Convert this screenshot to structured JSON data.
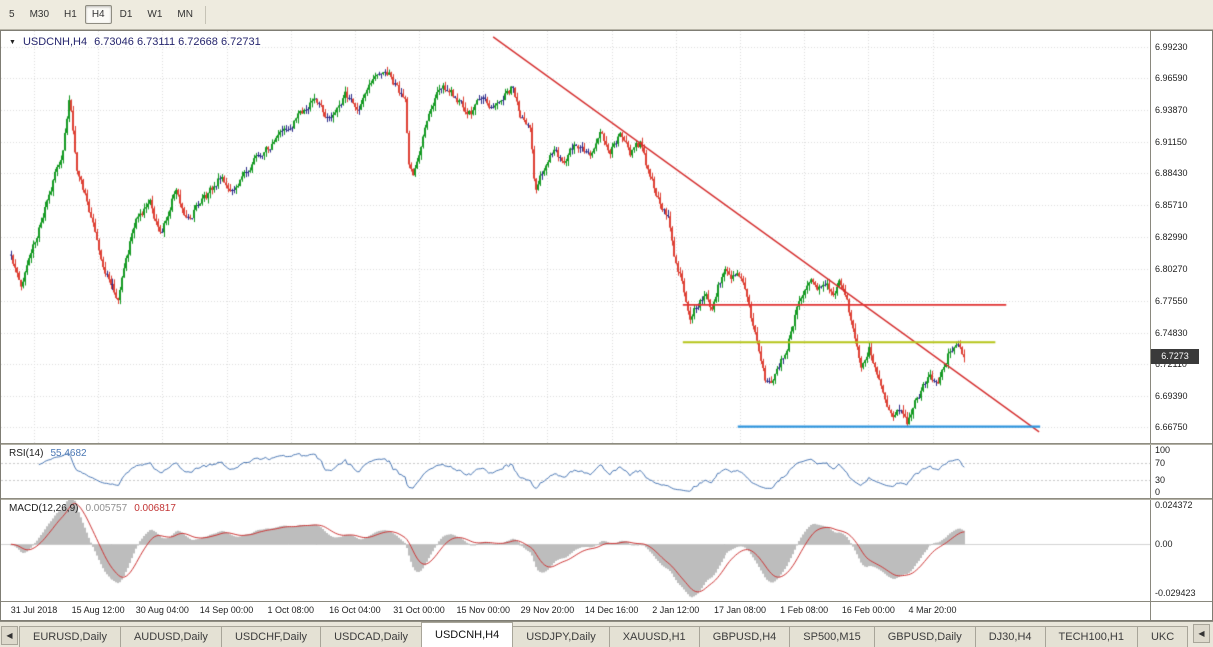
{
  "toolbar": {
    "timeframes": [
      {
        "label": "5",
        "active": false
      },
      {
        "label": "M30",
        "active": false
      },
      {
        "label": "H1",
        "active": false
      },
      {
        "label": "H4",
        "active": true
      },
      {
        "label": "D1",
        "active": false
      },
      {
        "label": "W1",
        "active": false
      },
      {
        "label": "MN",
        "active": false
      }
    ]
  },
  "chart": {
    "marker": "▼",
    "symbol_period": "USDCNH,H4",
    "ohlc": "6.73046 6.73111 6.72668 6.72731",
    "price_badge": "6.7273",
    "price_axis": [
      {
        "label": "6.99230",
        "value": 6.9923
      },
      {
        "label": "6.96590",
        "value": 6.9659
      },
      {
        "label": "6.93870",
        "value": 6.9387
      },
      {
        "label": "6.91150",
        "value": 6.9115
      },
      {
        "label": "6.88430",
        "value": 6.8843
      },
      {
        "label": "6.85710",
        "value": 6.8571
      },
      {
        "label": "6.82990",
        "value": 6.8299
      },
      {
        "label": "6.80270",
        "value": 6.8027
      },
      {
        "label": "6.77550",
        "value": 6.7755
      },
      {
        "label": "6.74830",
        "value": 6.7483
      },
      {
        "label": "6.72110",
        "value": 6.7211
      },
      {
        "label": "6.69390",
        "value": 6.6939
      },
      {
        "label": "6.66750",
        "value": 6.6675
      }
    ],
    "date_axis": [
      "31 Jul 2018",
      "15 Aug 12:00",
      "30 Aug 04:00",
      "14 Sep 00:00",
      "1 Oct 08:00",
      "16 Oct 04:00",
      "31 Oct 00:00",
      "15 Nov 00:00",
      "29 Nov 20:00",
      "14 Dec 16:00",
      "2 Jan 12:00",
      "17 Jan 08:00",
      "1 Feb 08:00",
      "16 Feb 00:00",
      "4 Mar 20:00"
    ]
  },
  "rsi": {
    "name": "RSI(14)",
    "value": "55.4682",
    "axis": [
      {
        "label": "100",
        "value": 100
      },
      {
        "label": "70",
        "value": 70
      },
      {
        "label": "30",
        "value": 30
      },
      {
        "label": "0",
        "value": 0
      }
    ]
  },
  "macd": {
    "name": "MACD(12,26,9)",
    "value_main": "0.005757",
    "value_signal": "0.006817",
    "axis": [
      {
        "label": "0.024372",
        "value": 0.024372
      },
      {
        "label": "0.00",
        "value": 0
      },
      {
        "label": "-0.029423",
        "value": -0.029423
      }
    ]
  },
  "tabs": {
    "left_arrow": "◀",
    "right_arrow": "◀",
    "items": [
      {
        "label": "EURUSD,Daily",
        "active": false
      },
      {
        "label": "AUDUSD,Daily",
        "active": false
      },
      {
        "label": "USDCHF,Daily",
        "active": false
      },
      {
        "label": "USDCAD,Daily",
        "active": false
      },
      {
        "label": "USDCNH,H4",
        "active": true
      },
      {
        "label": "USDJPY,Daily",
        "active": false
      },
      {
        "label": "XAUUSD,H1",
        "active": false
      },
      {
        "label": "GBPUSD,H4",
        "active": false
      },
      {
        "label": "SP500,M15",
        "active": false
      },
      {
        "label": "GBPUSD,Daily",
        "active": false
      },
      {
        "label": "DJ30,H4",
        "active": false
      },
      {
        "label": "TECH100,H1",
        "active": false
      },
      {
        "label": "UKC",
        "active": false
      }
    ]
  },
  "chart_data": {
    "type": "candlestick",
    "symbol": "USDCNH",
    "timeframe": "H4",
    "title": "USDCNH,H4",
    "current_price": 6.72731,
    "ohlc_current": {
      "open": 6.73046,
      "high": 6.73111,
      "low": 6.72668,
      "close": 6.72731
    },
    "y_range": [
      6.654,
      7.006
    ],
    "bars": 480,
    "seed": 7,
    "candle_span": [
      0.0087,
      0.8384
    ],
    "date_ticks": {
      "start_frac": 0.0287,
      "step_frac": 0.05586,
      "count": 15
    },
    "price_path": [
      [
        0.0,
        6.815
      ],
      [
        0.01,
        6.79
      ],
      [
        0.031,
        6.842
      ],
      [
        0.054,
        6.905
      ],
      [
        0.061,
        6.95
      ],
      [
        0.068,
        6.89
      ],
      [
        0.084,
        6.845
      ],
      [
        0.099,
        6.8
      ],
      [
        0.113,
        6.778
      ],
      [
        0.131,
        6.845
      ],
      [
        0.147,
        6.858
      ],
      [
        0.157,
        6.83
      ],
      [
        0.173,
        6.872
      ],
      [
        0.183,
        6.843
      ],
      [
        0.199,
        6.858
      ],
      [
        0.218,
        6.88
      ],
      [
        0.236,
        6.87
      ],
      [
        0.257,
        6.9
      ],
      [
        0.277,
        6.912
      ],
      [
        0.298,
        6.93
      ],
      [
        0.319,
        6.948
      ],
      [
        0.335,
        6.93
      ],
      [
        0.351,
        6.952
      ],
      [
        0.366,
        6.94
      ],
      [
        0.382,
        6.965
      ],
      [
        0.393,
        6.975
      ],
      [
        0.403,
        6.96
      ],
      [
        0.414,
        6.945
      ],
      [
        0.417,
        6.895
      ],
      [
        0.422,
        6.885
      ],
      [
        0.435,
        6.925
      ],
      [
        0.45,
        6.96
      ],
      [
        0.466,
        6.95
      ],
      [
        0.482,
        6.935
      ],
      [
        0.492,
        6.95
      ],
      [
        0.503,
        6.94
      ],
      [
        0.513,
        6.95
      ],
      [
        0.526,
        6.958
      ],
      [
        0.534,
        6.93
      ],
      [
        0.545,
        6.925
      ],
      [
        0.55,
        6.87
      ],
      [
        0.56,
        6.89
      ],
      [
        0.571,
        6.905
      ],
      [
        0.581,
        6.89
      ],
      [
        0.592,
        6.912
      ],
      [
        0.607,
        6.9
      ],
      [
        0.618,
        6.922
      ],
      [
        0.628,
        6.905
      ],
      [
        0.639,
        6.918
      ],
      [
        0.649,
        6.9
      ],
      [
        0.66,
        6.91
      ],
      [
        0.67,
        6.88
      ],
      [
        0.681,
        6.86
      ],
      [
        0.689,
        6.845
      ],
      [
        0.696,
        6.81
      ],
      [
        0.704,
        6.79
      ],
      [
        0.712,
        6.76
      ],
      [
        0.72,
        6.773
      ],
      [
        0.728,
        6.78
      ],
      [
        0.735,
        6.765
      ],
      [
        0.741,
        6.788
      ],
      [
        0.749,
        6.8
      ],
      [
        0.756,
        6.79
      ],
      [
        0.762,
        6.802
      ],
      [
        0.77,
        6.785
      ],
      [
        0.777,
        6.76
      ],
      [
        0.783,
        6.742
      ],
      [
        0.791,
        6.71
      ],
      [
        0.798,
        6.7
      ],
      [
        0.806,
        6.718
      ],
      [
        0.815,
        6.738
      ],
      [
        0.822,
        6.76
      ],
      [
        0.829,
        6.78
      ],
      [
        0.838,
        6.795
      ],
      [
        0.846,
        6.785
      ],
      [
        0.853,
        6.795
      ],
      [
        0.861,
        6.78
      ],
      [
        0.869,
        6.79
      ],
      [
        0.877,
        6.775
      ],
      [
        0.885,
        6.74
      ],
      [
        0.892,
        6.72
      ],
      [
        0.9,
        6.735
      ],
      [
        0.908,
        6.71
      ],
      [
        0.916,
        6.69
      ],
      [
        0.924,
        6.675
      ],
      [
        0.932,
        6.685
      ],
      [
        0.94,
        6.672
      ],
      [
        0.948,
        6.69
      ],
      [
        0.955,
        6.7
      ],
      [
        0.963,
        6.715
      ],
      [
        0.972,
        6.705
      ],
      [
        0.979,
        6.722
      ],
      [
        0.986,
        6.735
      ],
      [
        0.993,
        6.74
      ],
      [
        1.0,
        6.727
      ]
    ],
    "trendline": {
      "color": "#d42a2a",
      "x1_frac": 0.4283,
      "price1": 7.001,
      "x2_frac": 0.9035,
      "price2": 6.6635,
      "width": 1.3
    },
    "hlines": [
      {
        "color": "#e03232",
        "price": 6.772,
        "x1_frac": 0.5934,
        "x2_frac": 0.8749,
        "width": 1.6
      },
      {
        "color": "#b5c418",
        "price": 6.74,
        "x1_frac": 0.5934,
        "x2_frac": 0.8654,
        "width": 2
      },
      {
        "color": "#2e94dd",
        "price": 6.668,
        "x1_frac": 0.6412,
        "x2_frac": 0.9044,
        "width": 2.4
      }
    ],
    "rsi": {
      "period": 14,
      "range": [
        -10,
        110
      ],
      "levels": [
        70,
        30
      ]
    },
    "macd": {
      "fast": 12,
      "slow": 26,
      "signal": 9,
      "range": [
        -0.0345,
        0.0269
      ]
    },
    "colors": {
      "up": "#149a22",
      "down": "#dd4034",
      "doji": "#2e2e8c",
      "grid": "#dcdcdc",
      "rsi_line": "#4a77b4",
      "macd_hist": "#bdbdbd",
      "macd_signal": "#cc3434",
      "level_dash": "#c8c8c8",
      "zero_line": "#d2d2d2"
    }
  }
}
